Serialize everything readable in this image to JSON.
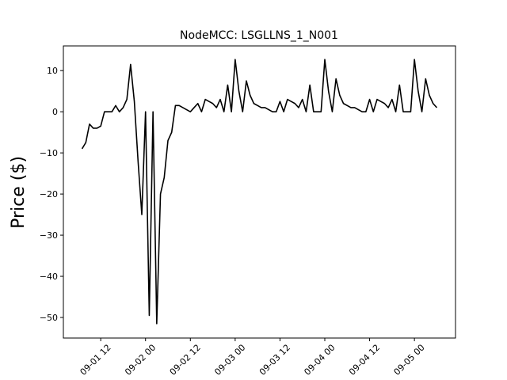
{
  "chart_data": {
    "type": "line",
    "title": "NodeMCC: LSGLLNS_1_N001",
    "y_label": "Price ($)",
    "x": [
      "09-01 07",
      "09-01 08",
      "09-01 09",
      "09-01 10",
      "09-01 11",
      "09-01 12",
      "09-01 13",
      "09-01 14",
      "09-01 15",
      "09-01 16",
      "09-01 17",
      "09-01 18",
      "09-01 19",
      "09-01 20",
      "09-01 21",
      "09-01 22",
      "09-01 23",
      "09-02 00",
      "09-02 01",
      "09-02 02",
      "09-02 03",
      "09-02 04",
      "09-02 05",
      "09-02 06",
      "09-02 07",
      "09-02 08",
      "09-02 09",
      "09-02 10",
      "09-02 11",
      "09-02 12",
      "09-02 13",
      "09-02 14",
      "09-02 15",
      "09-02 16",
      "09-02 17",
      "09-02 18",
      "09-02 19",
      "09-02 20",
      "09-02 21",
      "09-02 22",
      "09-02 23",
      "09-03 00",
      "09-03 01",
      "09-03 02",
      "09-03 03",
      "09-03 04",
      "09-03 05",
      "09-03 06",
      "09-03 07",
      "09-03 08",
      "09-03 09",
      "09-03 10",
      "09-03 11",
      "09-03 12",
      "09-03 13",
      "09-03 14",
      "09-03 15",
      "09-03 16",
      "09-03 17",
      "09-03 18",
      "09-03 19",
      "09-03 20",
      "09-03 21",
      "09-03 22",
      "09-03 23",
      "09-04 00",
      "09-04 01",
      "09-04 02",
      "09-04 03",
      "09-04 04",
      "09-04 05",
      "09-04 06",
      "09-04 07",
      "09-04 08",
      "09-04 09",
      "09-04 10",
      "09-04 11",
      "09-04 12",
      "09-04 13",
      "09-04 14",
      "09-04 15",
      "09-04 16",
      "09-04 17",
      "09-04 18",
      "09-04 19",
      "09-04 20",
      "09-04 21",
      "09-04 22",
      "09-04 23",
      "09-05 00",
      "09-05 01",
      "09-05 02",
      "09-05 03",
      "09-05 04",
      "09-05 05",
      "09-05 06"
    ],
    "series": [
      {
        "name": "LSGLLNS_1_N001",
        "color": "#000000",
        "values": [
          -9,
          -7.5,
          -3,
          -4,
          -4,
          -3.5,
          0,
          0,
          0,
          1.5,
          0,
          1,
          3,
          11.5,
          2.5,
          -12,
          -25,
          0,
          -49.5,
          0,
          -51.5,
          -20,
          -16,
          -7,
          -5,
          1.5,
          1.5,
          1,
          0.5,
          0,
          1,
          2,
          0,
          3,
          2.5,
          2,
          1,
          3,
          0,
          6.5,
          0,
          12.7,
          5,
          0,
          7.5,
          4,
          2,
          1.5,
          1,
          1,
          0.5,
          0,
          0,
          2.5,
          0,
          3,
          2.5,
          2,
          1,
          3,
          0,
          6.5,
          0,
          0,
          0,
          12.7,
          5,
          0,
          8,
          4,
          2,
          1.5,
          1,
          1,
          0.5,
          0,
          0,
          3,
          0,
          3,
          2.5,
          2,
          1,
          3,
          0,
          6.5,
          0,
          0,
          0,
          12.7,
          5,
          0,
          8,
          4,
          2,
          1
        ]
      }
    ],
    "xlim": [
      "09-01 02",
      "09-05 11"
    ],
    "xticks": [
      "09-01 12",
      "09-02 00",
      "09-02 12",
      "09-03 00",
      "09-03 12",
      "09-04 00",
      "09-04 12",
      "09-05 00"
    ],
    "ylim": [
      -55,
      16
    ],
    "yticks": [
      {
        "value": -50,
        "label": "−50"
      },
      {
        "value": -40,
        "label": "−40"
      },
      {
        "value": -30,
        "label": "−30"
      },
      {
        "value": -20,
        "label": "−20"
      },
      {
        "value": -10,
        "label": "−10"
      },
      0,
      10
    ]
  }
}
